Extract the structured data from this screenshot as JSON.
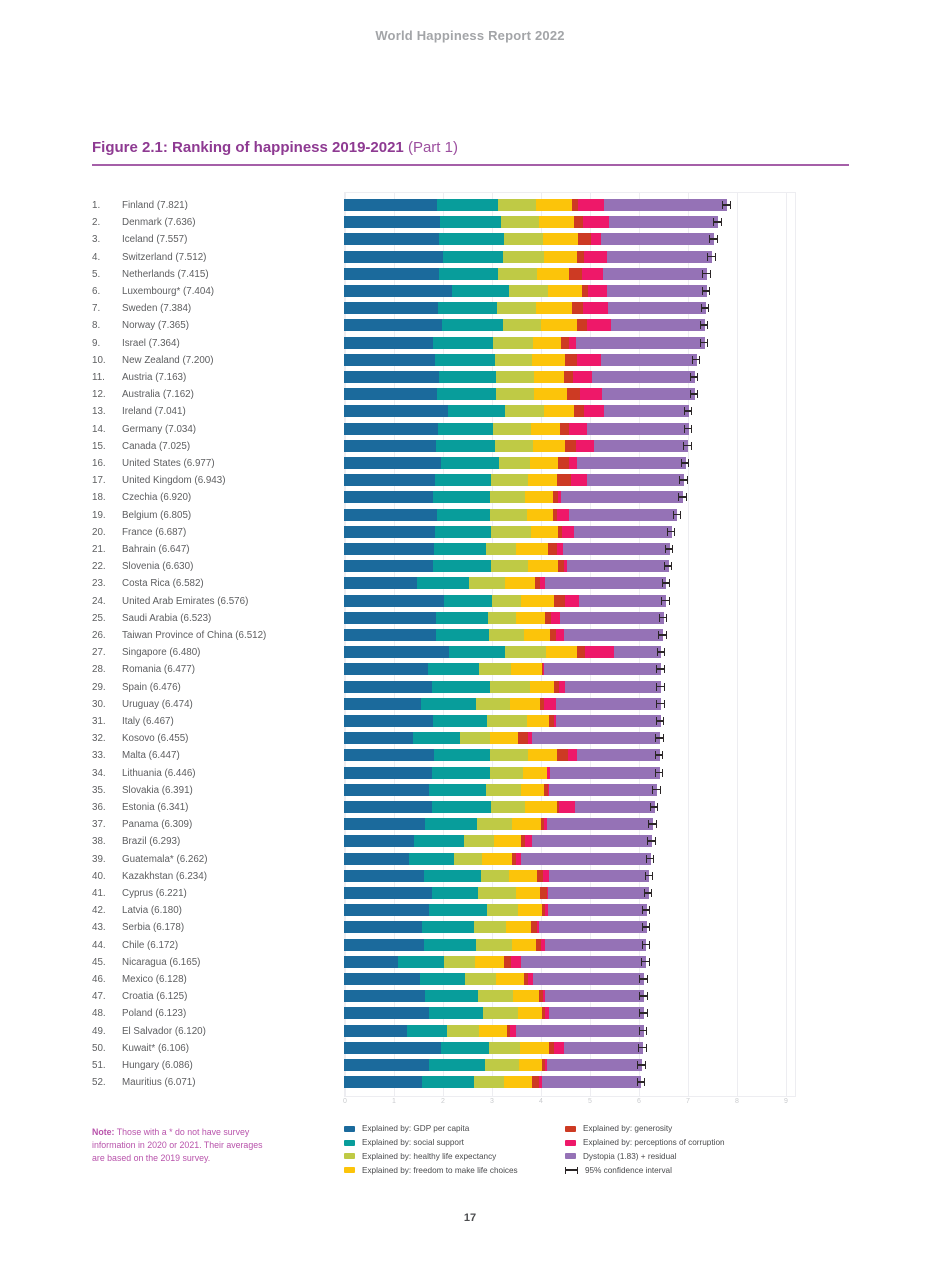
{
  "page": {
    "header": "World Happiness Report 2022",
    "page_number": "17"
  },
  "figure": {
    "title_bold": "Figure 2.1: Ranking of happiness 2019-2021",
    "title_suffix": " (Part 1)"
  },
  "note": {
    "label": "Note:",
    "line1_rest": "Those with a * do not have survey",
    "line2": "information in 2020 or 2021. Their averages",
    "line3": "are based on the 2019 survey."
  },
  "legend": {
    "columns": [
      {
        "items": [
          {
            "type": "swatch",
            "key": "gdp",
            "color": "#1b6a9c",
            "label": "Explained by: GDP per capita"
          },
          {
            "type": "swatch",
            "key": "social_support",
            "color": "#089d9b",
            "label": "Explained by: social support"
          },
          {
            "type": "swatch",
            "key": "healthy_life_expectancy",
            "color": "#bfca45",
            "label": "Explained by: healthy life expectancy"
          },
          {
            "type": "swatch",
            "key": "freedom",
            "color": "#fcc40a",
            "label": "Explained by: freedom to make life choices"
          }
        ]
      },
      {
        "items": [
          {
            "type": "swatch",
            "key": "generosity",
            "color": "#cd3a23",
            "label": "Explained by: generosity"
          },
          {
            "type": "swatch",
            "key": "corruption",
            "color": "#ee1869",
            "label": "Explained by: perceptions of corruption"
          },
          {
            "type": "swatch",
            "key": "dystopia_residual",
            "color": "#9572b6",
            "label": "Dystopia (1.83) + residual"
          },
          {
            "type": "whisker",
            "key": "ci95",
            "color": "#2b2627",
            "label": "95% confidence interval"
          }
        ]
      }
    ]
  },
  "chart_data": {
    "type": "bar",
    "subtype": "horizontal_stacked",
    "title": "Figure 2.1: Ranking of happiness 2019-2021 (Part 1)",
    "xlabel": "",
    "ylabel": "",
    "x_axis": {
      "min": 0,
      "max": 9,
      "tick_labels": [
        "0",
        "1",
        "2",
        "3",
        "4",
        "5",
        "6",
        "7",
        "8",
        "9"
      ],
      "gridlines": true
    },
    "legend_position": "bottom",
    "ci_halfwidth_estimate": 0.1,
    "components": [
      {
        "key": "gdp",
        "label": "Explained by: GDP per capita",
        "color": "#1b6a9c"
      },
      {
        "key": "social_support",
        "label": "Explained by: social support",
        "color": "#089d9b"
      },
      {
        "key": "healthy_life_expectancy",
        "label": "Explained by: healthy life expectancy",
        "color": "#bfca45"
      },
      {
        "key": "freedom",
        "label": "Explained by: freedom to make life choices",
        "color": "#fcc40a"
      },
      {
        "key": "generosity",
        "label": "Explained by: generosity",
        "color": "#cd3a23"
      },
      {
        "key": "corruption",
        "label": "Explained by: perceptions of corruption",
        "color": "#ee1869"
      },
      {
        "key": "dystopia_residual",
        "label": "Dystopia (1.83) + residual",
        "color": "#9572b6"
      }
    ],
    "countries": [
      {
        "rank": 1,
        "label": "Finland (7.821)",
        "score": 7.821,
        "values": [
          1.892,
          1.258,
          0.775,
          0.736,
          0.109,
          0.534,
          2.517
        ]
      },
      {
        "rank": 2,
        "label": "Denmark (7.636)",
        "score": 7.636,
        "values": [
          1.953,
          1.243,
          0.777,
          0.719,
          0.188,
          0.532,
          2.224
        ]
      },
      {
        "rank": 3,
        "label": "Iceland (7.557)",
        "score": 7.557,
        "values": [
          1.936,
          1.32,
          0.803,
          0.718,
          0.27,
          0.191,
          2.319
        ]
      },
      {
        "rank": 4,
        "label": "Switzerland (7.512)",
        "score": 7.512,
        "values": [
          2.026,
          1.226,
          0.822,
          0.677,
          0.147,
          0.461,
          2.153
        ]
      },
      {
        "rank": 5,
        "label": "Netherlands (7.415)",
        "score": 7.415,
        "values": [
          1.945,
          1.206,
          0.787,
          0.651,
          0.271,
          0.419,
          2.136
        ]
      },
      {
        "rank": 6,
        "label": "Luxembourg* (7.404)",
        "score": 7.404,
        "values": [
          2.209,
          1.155,
          0.79,
          0.7,
          0.12,
          0.388,
          2.042
        ]
      },
      {
        "rank": 7,
        "label": "Sweden (7.384)",
        "score": 7.384,
        "values": [
          1.92,
          1.204,
          0.803,
          0.724,
          0.218,
          0.512,
          2.003
        ]
      },
      {
        "rank": 8,
        "label": "Norway (7.365)",
        "score": 7.365,
        "values": [
          1.997,
          1.239,
          0.786,
          0.728,
          0.217,
          0.474,
          1.924
        ]
      },
      {
        "rank": 9,
        "label": "Israel (7.364)",
        "score": 7.364,
        "values": [
          1.826,
          1.221,
          0.818,
          0.568,
          0.155,
          0.143,
          2.633
        ]
      },
      {
        "rank": 10,
        "label": "New Zealand (7.200)",
        "score": 7.2,
        "values": [
          1.852,
          1.235,
          0.752,
          0.68,
          0.245,
          0.483,
          1.953
        ]
      },
      {
        "rank": 11,
        "label": "Austria (7.163)",
        "score": 7.163,
        "values": [
          1.931,
          1.165,
          0.774,
          0.623,
          0.19,
          0.385,
          2.095
        ]
      },
      {
        "rank": 12,
        "label": "Australia (7.162)",
        "score": 7.162,
        "values": [
          1.9,
          1.203,
          0.772,
          0.676,
          0.258,
          0.461,
          1.892
        ]
      },
      {
        "rank": 13,
        "label": "Ireland (7.041)",
        "score": 7.041,
        "values": [
          2.129,
          1.166,
          0.779,
          0.627,
          0.19,
          0.408,
          1.742
        ]
      },
      {
        "rank": 14,
        "label": "Germany (7.034)",
        "score": 7.034,
        "values": [
          1.924,
          1.119,
          0.772,
          0.596,
          0.18,
          0.375,
          2.068
        ]
      },
      {
        "rank": 15,
        "label": "Canada (7.025)",
        "score": 7.025,
        "values": [
          1.886,
          1.188,
          0.783,
          0.659,
          0.217,
          0.368,
          1.924
        ]
      },
      {
        "rank": 16,
        "label": "United States (6.977)",
        "score": 6.977,
        "values": [
          1.982,
          1.182,
          0.628,
          0.574,
          0.22,
          0.177,
          2.214
        ]
      },
      {
        "rank": 17,
        "label": "United Kingdom (6.943)",
        "score": 6.943,
        "values": [
          1.867,
          1.143,
          0.75,
          0.597,
          0.267,
          0.329,
          1.99
        ]
      },
      {
        "rank": 18,
        "label": "Czechia (6.920)",
        "score": 6.92,
        "values": [
          1.815,
          1.158,
          0.715,
          0.578,
          0.109,
          0.052,
          2.493
        ]
      },
      {
        "rank": 19,
        "label": "Belgium (6.805)",
        "score": 6.805,
        "values": [
          1.892,
          1.095,
          0.757,
          0.526,
          0.085,
          0.237,
          2.213
        ]
      },
      {
        "rank": 20,
        "label": "France (6.687)",
        "score": 6.687,
        "values": [
          1.863,
          1.147,
          0.798,
          0.557,
          0.086,
          0.252,
          1.984
        ]
      },
      {
        "rank": 21,
        "label": "Bahrain (6.647)",
        "score": 6.647,
        "values": [
          1.839,
          1.05,
          0.631,
          0.647,
          0.178,
          0.132,
          2.17
        ]
      },
      {
        "rank": 22,
        "label": "Slovenia (6.630)",
        "score": 6.63,
        "values": [
          1.809,
          1.191,
          0.753,
          0.619,
          0.125,
          0.059,
          2.074
        ]
      },
      {
        "rank": 23,
        "label": "Costa Rica (6.582)",
        "score": 6.582,
        "values": [
          1.486,
          1.071,
          0.73,
          0.62,
          0.09,
          0.101,
          2.484
        ]
      },
      {
        "rank": 24,
        "label": "United Arab Emirates (6.576)",
        "score": 6.576,
        "values": [
          2.034,
          0.991,
          0.597,
          0.661,
          0.224,
          0.281,
          1.788
        ]
      },
      {
        "rank": 25,
        "label": "Saudi Arabia (6.523)",
        "score": 6.523,
        "values": [
          1.87,
          1.064,
          0.57,
          0.604,
          0.111,
          0.195,
          2.109
        ]
      },
      {
        "rank": 26,
        "label": "Taiwan Province of China (6.512)",
        "score": 6.512,
        "values": [
          1.885,
          1.067,
          0.716,
          0.532,
          0.125,
          0.166,
          2.021
        ]
      },
      {
        "rank": 27,
        "label": "Singapore (6.480)",
        "score": 6.48,
        "values": [
          2.149,
          1.127,
          0.851,
          0.628,
          0.163,
          0.587,
          0.975
        ]
      },
      {
        "rank": 28,
        "label": "Romania (6.477)",
        "score": 6.477,
        "values": [
          1.719,
          1.036,
          0.662,
          0.618,
          0.018,
          0.028,
          2.396
        ]
      },
      {
        "rank": 29,
        "label": "Spain (6.476)",
        "score": 6.476,
        "values": [
          1.789,
          1.196,
          0.803,
          0.498,
          0.11,
          0.124,
          1.956
        ]
      },
      {
        "rank": 30,
        "label": "Uruguay (6.474)",
        "score": 6.474,
        "values": [
          1.577,
          1.118,
          0.69,
          0.621,
          0.082,
          0.248,
          2.138
        ]
      },
      {
        "rank": 31,
        "label": "Italy (6.467)",
        "score": 6.467,
        "values": [
          1.826,
          1.099,
          0.803,
          0.449,
          0.1,
          0.051,
          2.139
        ]
      },
      {
        "rank": 32,
        "label": "Kosovo (6.455)",
        "score": 6.455,
        "values": [
          1.404,
          0.965,
          0.607,
          0.569,
          0.217,
          0.069,
          2.624
        ]
      },
      {
        "rank": 33,
        "label": "Malta (6.447)",
        "score": 6.447,
        "values": [
          1.846,
          1.139,
          0.771,
          0.592,
          0.222,
          0.194,
          1.683
        ]
      },
      {
        "rank": 34,
        "label": "Lithuania (6.446)",
        "score": 6.446,
        "values": [
          1.793,
          1.182,
          0.674,
          0.487,
          0.011,
          0.05,
          2.249
        ]
      },
      {
        "rank": 35,
        "label": "Slovakia (6.391)",
        "score": 6.391,
        "values": [
          1.742,
          1.164,
          0.7,
          0.48,
          0.082,
          0.02,
          2.203
        ]
      },
      {
        "rank": 36,
        "label": "Estonia (6.341)",
        "score": 6.341,
        "values": [
          1.795,
          1.206,
          0.7,
          0.642,
          0.053,
          0.312,
          1.633
        ]
      },
      {
        "rank": 37,
        "label": "Panama (6.309)",
        "score": 6.309,
        "values": [
          1.657,
          1.059,
          0.706,
          0.598,
          0.064,
          0.067,
          2.158
        ]
      },
      {
        "rank": 38,
        "label": "Brazil (6.293)",
        "score": 6.293,
        "values": [
          1.432,
          1.017,
          0.615,
          0.545,
          0.091,
          0.129,
          2.464
        ]
      },
      {
        "rank": 39,
        "label": "Guatemala* (6.262)",
        "score": 6.262,
        "values": [
          1.327,
          0.911,
          0.569,
          0.613,
          0.091,
          0.112,
          2.639
        ]
      },
      {
        "rank": 40,
        "label": "Kazakhstan (6.234)",
        "score": 6.234,
        "values": [
          1.64,
          1.166,
          0.566,
          0.572,
          0.128,
          0.114,
          2.048
        ]
      },
      {
        "rank": 41,
        "label": "Cyprus (6.221)",
        "score": 6.221,
        "values": [
          1.788,
          0.949,
          0.78,
          0.492,
          0.13,
          0.031,
          2.051
        ]
      },
      {
        "rank": 42,
        "label": "Latvia (6.180)",
        "score": 6.18,
        "values": [
          1.73,
          1.183,
          0.635,
          0.489,
          0.07,
          0.061,
          2.012
        ]
      },
      {
        "rank": 43,
        "label": "Serbia (6.178)",
        "score": 6.178,
        "values": [
          1.584,
          1.063,
          0.654,
          0.506,
          0.128,
          0.04,
          2.203
        ]
      },
      {
        "rank": 44,
        "label": "Chile (6.172)",
        "score": 6.172,
        "values": [
          1.639,
          1.056,
          0.74,
          0.492,
          0.096,
          0.086,
          2.063
        ]
      },
      {
        "rank": 45,
        "label": "Nicaragua (6.165)",
        "score": 6.165,
        "values": [
          1.106,
          0.931,
          0.645,
          0.593,
          0.125,
          0.213,
          2.552
        ]
      },
      {
        "rank": 46,
        "label": "Mexico (6.128)",
        "score": 6.128,
        "values": [
          1.546,
          0.916,
          0.648,
          0.565,
          0.072,
          0.115,
          2.266
        ]
      },
      {
        "rank": 47,
        "label": "Croatia (6.125)",
        "score": 6.125,
        "values": [
          1.661,
          1.084,
          0.706,
          0.524,
          0.095,
          0.029,
          2.026
        ]
      },
      {
        "rank": 48,
        "label": "Poland (6.123)",
        "score": 6.123,
        "values": [
          1.728,
          1.118,
          0.697,
          0.5,
          0.05,
          0.088,
          1.942
        ]
      },
      {
        "rank": 49,
        "label": "El Salvador (6.120)",
        "score": 6.12,
        "values": [
          1.287,
          0.818,
          0.646,
          0.581,
          0.06,
          0.128,
          2.6
        ]
      },
      {
        "rank": 50,
        "label": "Kuwait* (6.106)",
        "score": 6.106,
        "values": [
          1.978,
          0.988,
          0.619,
          0.602,
          0.097,
          0.208,
          1.614
        ]
      },
      {
        "rank": 51,
        "label": "Hungary (6.086)",
        "score": 6.086,
        "values": [
          1.732,
          1.146,
          0.69,
          0.479,
          0.06,
          0.035,
          1.944
        ]
      },
      {
        "rank": 52,
        "label": "Mauritius (6.071)",
        "score": 6.071,
        "values": [
          1.601,
          1.059,
          0.596,
          0.571,
          0.153,
          0.07,
          2.021
        ]
      }
    ]
  }
}
